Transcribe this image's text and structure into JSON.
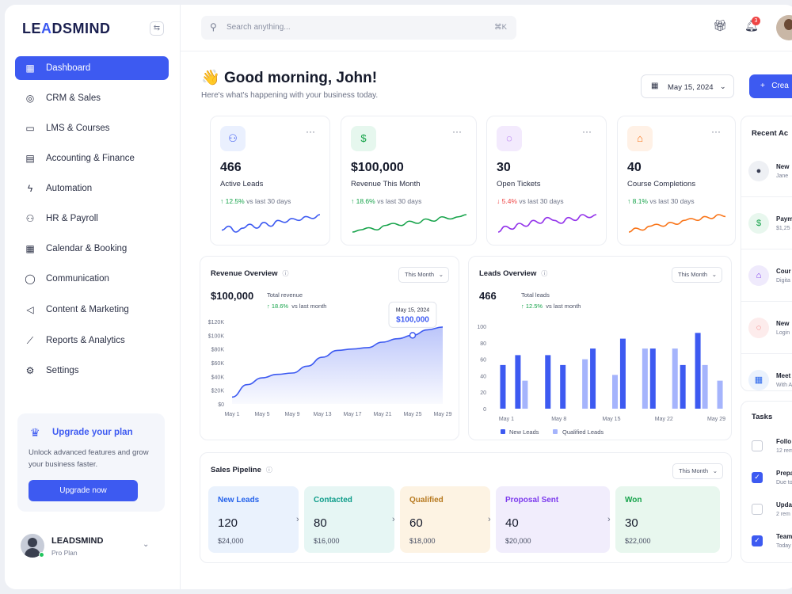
{
  "app": {
    "logo_prefix": "LE",
    "logo_accent": "A",
    "logo_suffix": "DSMIND"
  },
  "sidebar": {
    "items": [
      {
        "label": "Dashboard",
        "icon": "grid-icon"
      },
      {
        "label": "CRM & Sales",
        "icon": "target-icon"
      },
      {
        "label": "LMS & Courses",
        "icon": "book-icon"
      },
      {
        "label": "Accounting & Finance",
        "icon": "wallet-icon"
      },
      {
        "label": "Automation",
        "icon": "bolt-icon"
      },
      {
        "label": "HR & Payroll",
        "icon": "users-icon"
      },
      {
        "label": "Calendar & Booking",
        "icon": "calendar-icon"
      },
      {
        "label": "Communication",
        "icon": "chat-icon"
      },
      {
        "label": "Content & Marketing",
        "icon": "megaphone-icon"
      },
      {
        "label": "Reports & Analytics",
        "icon": "chart-line-icon"
      },
      {
        "label": "Settings",
        "icon": "gear-icon"
      }
    ],
    "upgrade": {
      "title": "Upgrade your plan",
      "desc": "Unlock advanced features and grow your business faster.",
      "button": "Upgrade now"
    },
    "user": {
      "name": "LEADSMIND",
      "plan": "Pro Plan"
    }
  },
  "topbar": {
    "search_placeholder": "Search anything...",
    "shortcut": "⌘K",
    "notification_count": "3"
  },
  "header": {
    "greeting_emoji": "👋",
    "greeting": "Good morning, John!",
    "subtitle": "Here's what's happening with your business today.",
    "date": "May 15, 2024",
    "create_label": "Crea"
  },
  "stats": [
    {
      "value": "466",
      "label": "Active Leads",
      "change": "↑ 12.5%",
      "cmp": "vs last 30 days",
      "trend": "up",
      "color": "#3d5af1",
      "icon": "users-icon",
      "spark": [
        8,
        10,
        7,
        9,
        11,
        9,
        12,
        10,
        13,
        12,
        14,
        13,
        15,
        14,
        16
      ]
    },
    {
      "value": "$100,000",
      "label": "Revenue This Month",
      "change": "↑ 18.6%",
      "cmp": "vs last 30 days",
      "trend": "up",
      "color": "#16a34a",
      "icon": "dollar-icon",
      "spark": [
        6,
        7,
        8,
        7,
        9,
        10,
        9,
        11,
        10,
        12,
        11,
        13,
        12,
        13,
        14
      ]
    },
    {
      "value": "30",
      "label": "Open Tickets",
      "change": "↓ 5.4%",
      "cmp": "vs last 30 days",
      "trend": "down",
      "color": "#9333ea",
      "icon": "chat-bubble-icon",
      "spark": [
        7,
        9,
        8,
        10,
        9,
        11,
        10,
        12,
        11,
        10,
        12,
        11,
        13,
        12,
        13
      ]
    },
    {
      "value": "40",
      "label": "Course Completions",
      "change": "↑ 8.1%",
      "cmp": "vs last 30 days",
      "trend": "up",
      "color": "#f97316",
      "icon": "graduation-cap-icon",
      "spark": [
        5,
        7,
        6,
        8,
        9,
        8,
        10,
        9,
        11,
        12,
        11,
        13,
        12,
        14,
        13
      ]
    }
  ],
  "revenue": {
    "title": "Revenue Overview",
    "filter": "This Month",
    "value": "$100,000",
    "total_label": "Total revenue",
    "change": "↑ 18.6%",
    "cmp": "vs last month",
    "tooltip_date": "May 15, 2024",
    "tooltip_value": "$100,000"
  },
  "leads": {
    "title": "Leads Overview",
    "filter": "This Month",
    "value": "466",
    "total_label": "Total leads",
    "change": "↑ 12.5%",
    "cmp": "vs last month",
    "legend_a": "New Leads",
    "legend_b": "Qualified Leads"
  },
  "chart_data": [
    {
      "type": "area",
      "title": "Revenue Overview",
      "x": [
        "May 1",
        "",
        "May 5",
        "",
        "May 9",
        "",
        "May 13",
        "",
        "May 17",
        "",
        "May 21",
        "",
        "May 25",
        "",
        "May 29"
      ],
      "x_ticks": [
        "May 1",
        "May 5",
        "May 9",
        "May 13",
        "May 17",
        "May 21",
        "May 25",
        "May 29"
      ],
      "y_ticks": [
        "$0",
        "$20K",
        "$40K",
        "$60K",
        "$80K",
        "$100K",
        "$120K"
      ],
      "values": [
        10,
        28,
        38,
        43,
        45,
        55,
        68,
        78,
        80,
        82,
        90,
        95,
        100,
        108,
        112
      ],
      "ylim": [
        0,
        120
      ],
      "color": "#3d5af1",
      "tooltip_index": 12
    },
    {
      "type": "bar",
      "title": "Leads Overview",
      "x_ticks": [
        "May 1",
        "May 8",
        "May 15",
        "May 22",
        "May 29"
      ],
      "y_ticks": [
        "0",
        "20",
        "40",
        "60",
        "80",
        "100"
      ],
      "ylim": [
        0,
        100
      ],
      "series": [
        {
          "name": "New Leads",
          "color": "#3d5af1",
          "values": [
            53,
            65,
            0,
            65,
            53,
            0,
            73,
            0,
            85,
            0,
            73,
            0,
            53,
            92,
            0
          ]
        },
        {
          "name": "Qualified Leads",
          "color": "#a5b4fc",
          "values": [
            0,
            34,
            0,
            0,
            0,
            60,
            0,
            41,
            0,
            73,
            0,
            73,
            0,
            53,
            34
          ]
        }
      ]
    }
  ],
  "pipeline": {
    "title": "Sales Pipeline",
    "filter": "This Month",
    "stages": [
      {
        "name": "New Leads",
        "count": "120",
        "amount": "$24,000",
        "bg": "#eaf2fd",
        "fg": "#2563eb"
      },
      {
        "name": "Contacted",
        "count": "80",
        "amount": "$16,000",
        "bg": "#e6f6f4",
        "fg": "#0f9d8a"
      },
      {
        "name": "Qualified",
        "count": "60",
        "amount": "$18,000",
        "bg": "#fdf3e3",
        "fg": "#b7791f"
      },
      {
        "name": "Proposal Sent",
        "count": "40",
        "amount": "$20,000",
        "bg": "#f1edfc",
        "fg": "#7c3aed"
      },
      {
        "name": "Won",
        "count": "30",
        "amount": "$22,000",
        "bg": "#e8f7ee",
        "fg": "#16a34a"
      }
    ]
  },
  "recent": {
    "title": "Recent Ac",
    "items": [
      {
        "t": "New",
        "s": "Jane",
        "icon": "user-icon",
        "bg": "#eef0f4",
        "fg": "#3a3f55"
      },
      {
        "t": "Paym",
        "s": "$1,25",
        "icon": "dollar-icon",
        "bg": "#e8f7ee",
        "fg": "#16a34a"
      },
      {
        "t": "Cour",
        "s": "Digita",
        "icon": "graduation-cap-icon",
        "bg": "#efeafc",
        "fg": "#7c3aed"
      },
      {
        "t": "New",
        "s": "Login",
        "icon": "chat-bubble-icon",
        "bg": "#fdecec",
        "fg": "#ef4444"
      },
      {
        "t": "Meet",
        "s": "With A",
        "icon": "calendar-icon",
        "bg": "#eaf2fd",
        "fg": "#2563eb"
      }
    ]
  },
  "tasks": {
    "title": "Tasks",
    "items": [
      {
        "t": "Follo",
        "s": "12 rem",
        "done": false
      },
      {
        "t": "Prepa",
        "s": "Due to",
        "done": true
      },
      {
        "t": "Upda",
        "s": "2 rem",
        "done": false
      },
      {
        "t": "Team",
        "s": "Today",
        "done": true
      }
    ]
  }
}
